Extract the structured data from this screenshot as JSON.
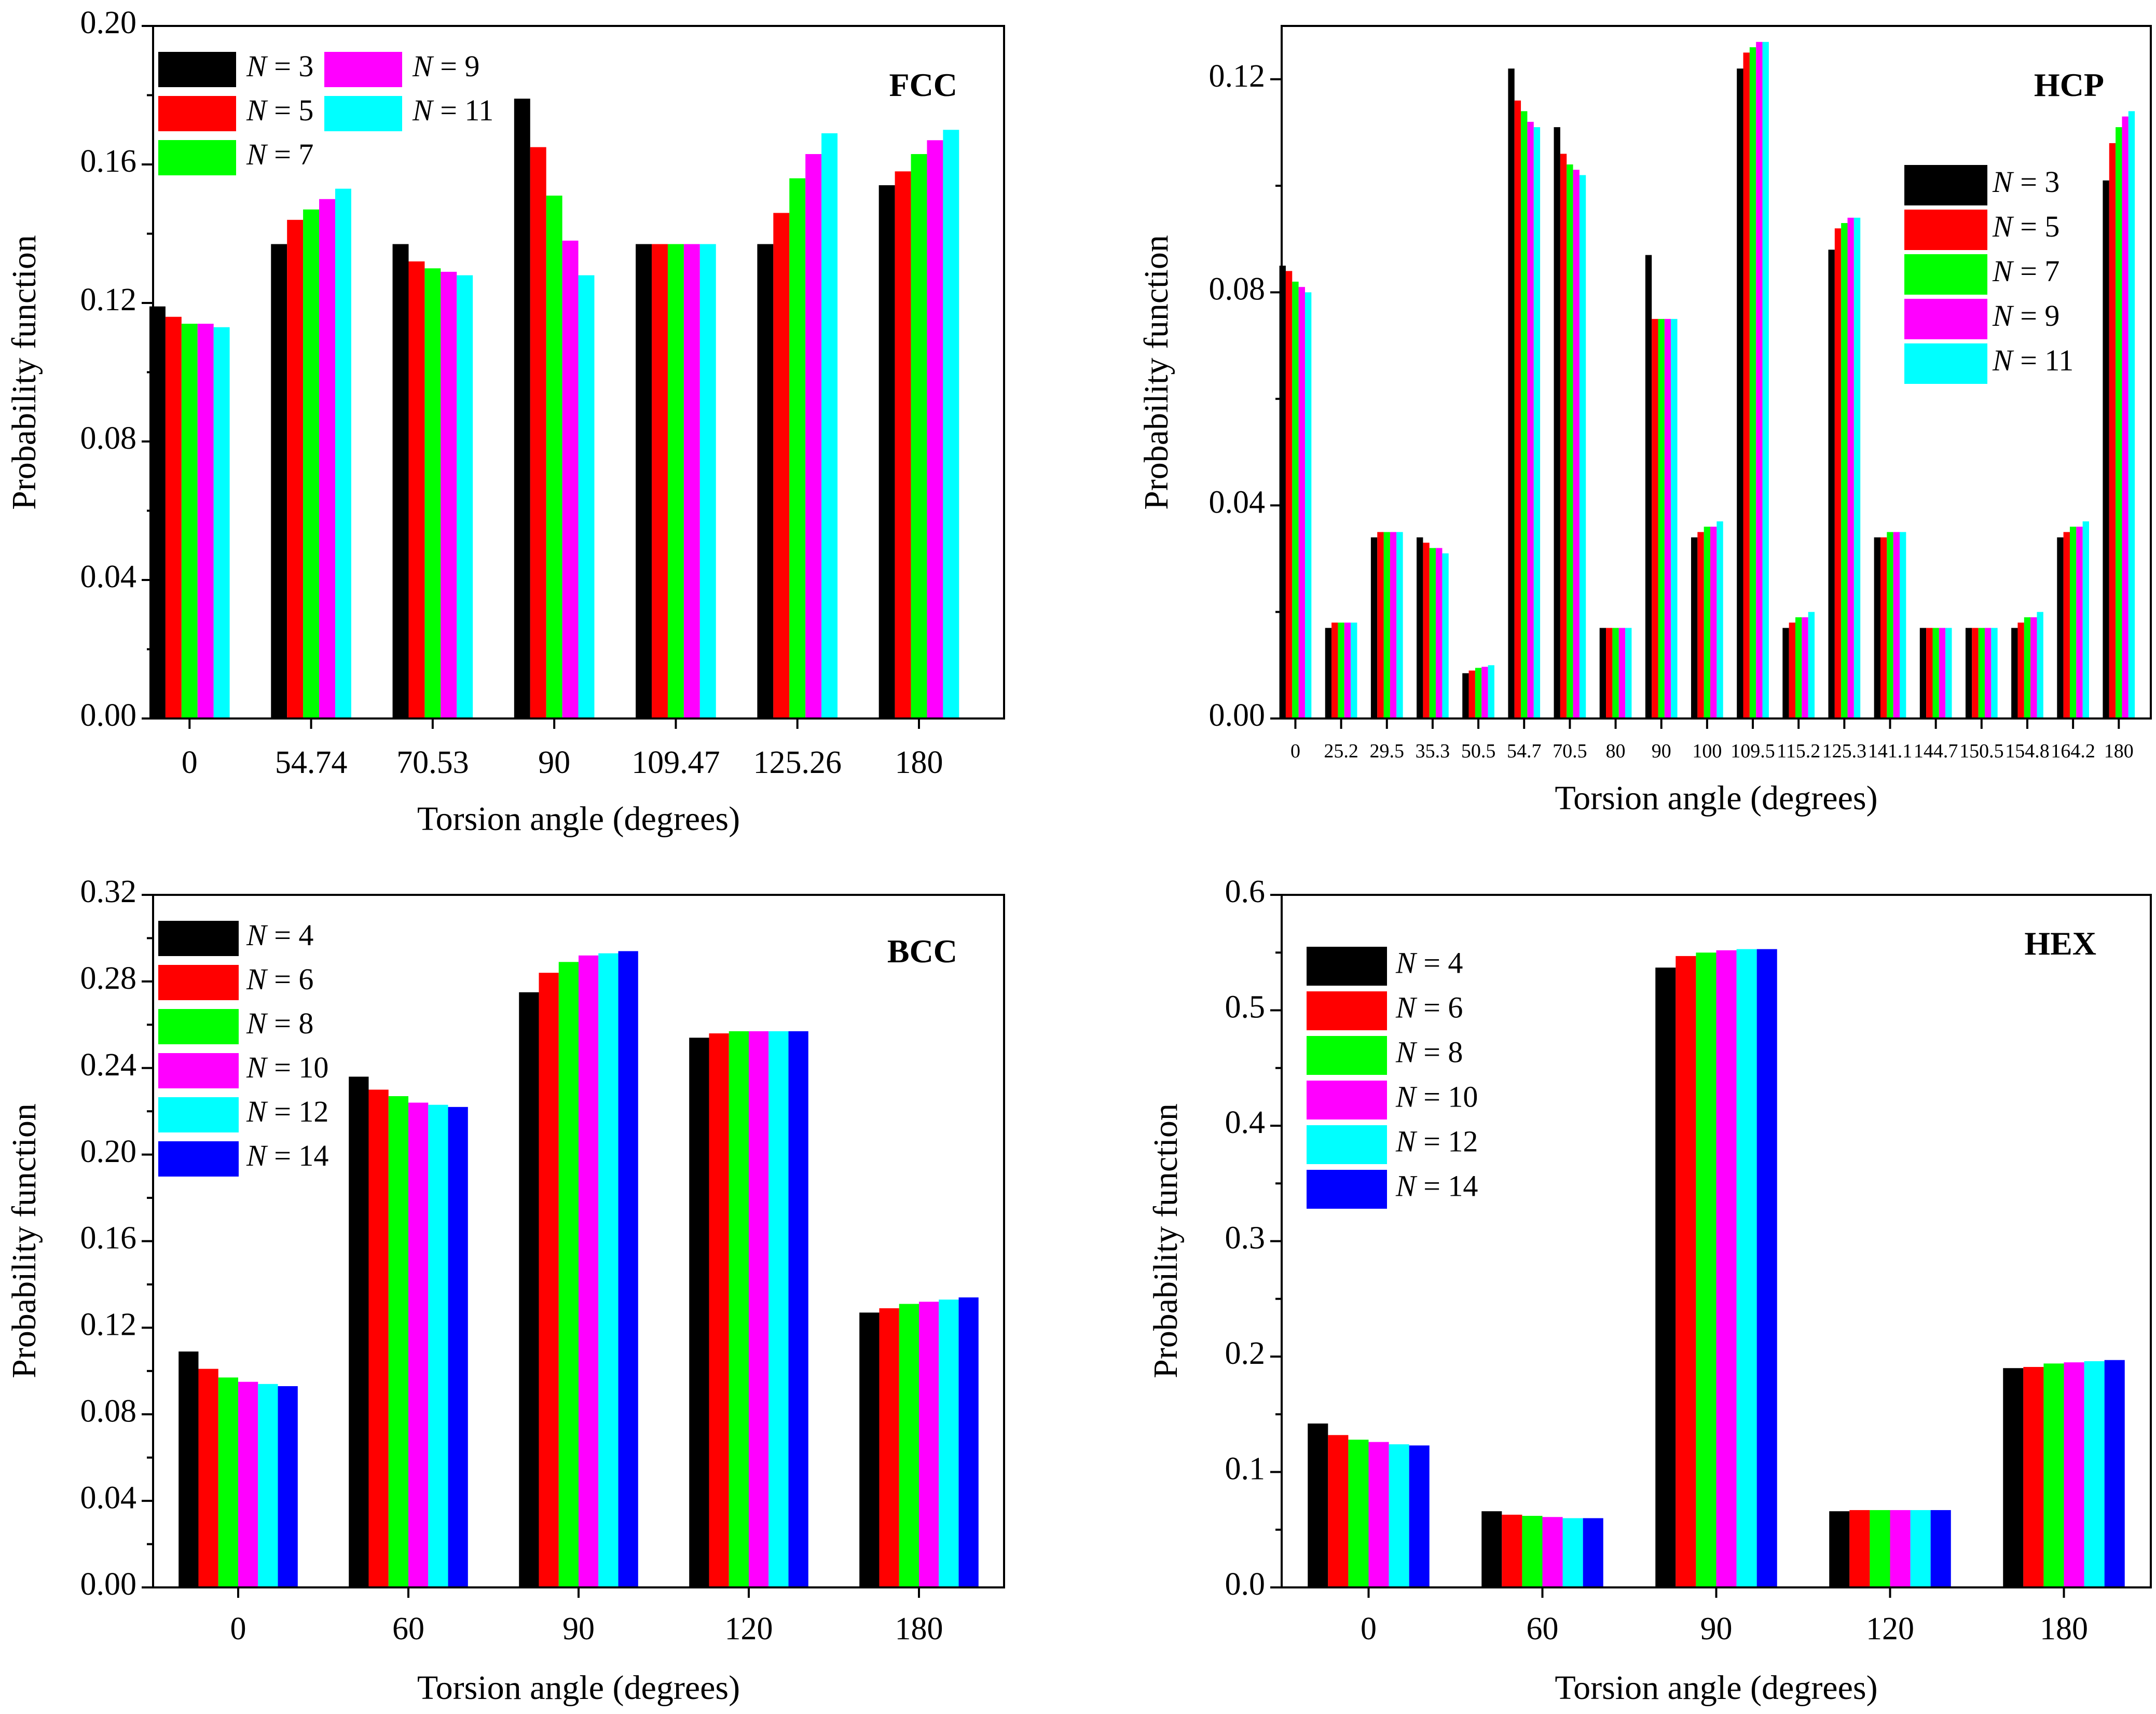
{
  "chart_data": [
    {
      "type": "bar",
      "title": "FCC",
      "xlabel": "Torsion angle (degrees)",
      "ylabel": "Probability function",
      "ylim": [
        0,
        0.2
      ],
      "yticks": [
        "0.00",
        "0.04",
        "0.08",
        "0.12",
        "0.16",
        "0.20"
      ],
      "categories": [
        "0",
        "54.74",
        "70.53",
        "90",
        "109.47",
        "125.26",
        "180"
      ],
      "legend_prefix": "N",
      "legend_placement": "top-left",
      "series": [
        {
          "name": "3",
          "color": "#000000",
          "values": [
            0.119,
            0.137,
            0.137,
            0.179,
            0.137,
            0.137,
            0.154
          ]
        },
        {
          "name": "5",
          "color": "#ff0000",
          "values": [
            0.116,
            0.144,
            0.132,
            0.165,
            0.137,
            0.146,
            0.158
          ]
        },
        {
          "name": "7",
          "color": "#00ff00",
          "values": [
            0.114,
            0.147,
            0.13,
            0.151,
            0.137,
            0.156,
            0.163
          ]
        },
        {
          "name": "9",
          "color": "#ff00ff",
          "values": [
            0.114,
            0.15,
            0.129,
            0.138,
            0.137,
            0.163,
            0.167
          ]
        },
        {
          "name": "11",
          "color": "#00ffff",
          "values": [
            0.113,
            0.153,
            0.128,
            0.128,
            0.137,
            0.169,
            0.17
          ]
        }
      ]
    },
    {
      "type": "bar",
      "title": "HCP",
      "xlabel": "Torsion angle (degrees)",
      "ylabel": "Probability function",
      "ylim": [
        0,
        0.13
      ],
      "yticks": [
        "0.00",
        "0.04",
        "0.08",
        "0.12"
      ],
      "categories": [
        "0",
        "25.2",
        "29.5",
        "35.3",
        "50.5",
        "54.7",
        "70.5",
        "80",
        "90",
        "100",
        "109.5",
        "115.2",
        "125.3",
        "141.1",
        "144.7",
        "150.5",
        "154.8",
        "164.2",
        "180"
      ],
      "legend_prefix": "N",
      "legend_placement": "top-right",
      "series": [
        {
          "name": "3",
          "color": "#000000",
          "values": [
            0.085,
            0.017,
            0.034,
            0.034,
            0.0085,
            0.122,
            0.111,
            0.017,
            0.087,
            0.034,
            0.122,
            0.017,
            0.088,
            0.034,
            0.017,
            0.017,
            0.017,
            0.034,
            0.101
          ]
        },
        {
          "name": "5",
          "color": "#ff0000",
          "values": [
            0.084,
            0.018,
            0.035,
            0.033,
            0.009,
            0.116,
            0.106,
            0.017,
            0.075,
            0.035,
            0.125,
            0.018,
            0.092,
            0.034,
            0.017,
            0.017,
            0.018,
            0.035,
            0.108
          ]
        },
        {
          "name": "7",
          "color": "#00ff00",
          "values": [
            0.082,
            0.018,
            0.035,
            0.032,
            0.0095,
            0.114,
            0.104,
            0.017,
            0.075,
            0.036,
            0.126,
            0.019,
            0.093,
            0.035,
            0.017,
            0.017,
            0.019,
            0.036,
            0.111
          ]
        },
        {
          "name": "9",
          "color": "#ff00ff",
          "values": [
            0.081,
            0.018,
            0.035,
            0.032,
            0.0097,
            0.112,
            0.103,
            0.017,
            0.075,
            0.036,
            0.127,
            0.019,
            0.094,
            0.035,
            0.017,
            0.017,
            0.019,
            0.036,
            0.113
          ]
        },
        {
          "name": "11",
          "color": "#00ffff",
          "values": [
            0.08,
            0.018,
            0.035,
            0.031,
            0.01,
            0.111,
            0.102,
            0.017,
            0.075,
            0.037,
            0.127,
            0.02,
            0.094,
            0.035,
            0.017,
            0.017,
            0.02,
            0.037,
            0.114
          ]
        }
      ]
    },
    {
      "type": "bar",
      "title": "BCC",
      "xlabel": "Torsion angle (degrees)",
      "ylabel": "Probability function",
      "ylim": [
        0,
        0.32
      ],
      "yticks": [
        "0.00",
        "0.04",
        "0.08",
        "0.12",
        "0.16",
        "0.20",
        "0.24",
        "0.28",
        "0.32"
      ],
      "categories": [
        "0",
        "60",
        "90",
        "120",
        "180"
      ],
      "legend_prefix": "N",
      "legend_placement": "top-left",
      "series": [
        {
          "name": "4",
          "color": "#000000",
          "values": [
            0.109,
            0.236,
            0.275,
            0.254,
            0.127
          ]
        },
        {
          "name": "6",
          "color": "#ff0000",
          "values": [
            0.101,
            0.23,
            0.284,
            0.256,
            0.129
          ]
        },
        {
          "name": "8",
          "color": "#00ff00",
          "values": [
            0.097,
            0.227,
            0.289,
            0.257,
            0.131
          ]
        },
        {
          "name": "10",
          "color": "#ff00ff",
          "values": [
            0.095,
            0.224,
            0.292,
            0.257,
            0.132
          ]
        },
        {
          "name": "12",
          "color": "#00ffff",
          "values": [
            0.094,
            0.223,
            0.293,
            0.257,
            0.133
          ]
        },
        {
          "name": "14",
          "color": "#0000ff",
          "values": [
            0.093,
            0.222,
            0.294,
            0.257,
            0.134
          ]
        }
      ]
    },
    {
      "type": "bar",
      "title": "HEX",
      "xlabel": "Torsion angle (degrees)",
      "ylabel": "Probability function",
      "ylim": [
        0,
        0.6
      ],
      "yticks": [
        "0.0",
        "0.1",
        "0.2",
        "0.3",
        "0.4",
        "0.5",
        "0.6"
      ],
      "categories": [
        "0",
        "60",
        "90",
        "120",
        "180"
      ],
      "legend_prefix": "N",
      "legend_placement": "top-left",
      "series": [
        {
          "name": "4",
          "color": "#000000",
          "values": [
            0.142,
            0.066,
            0.537,
            0.066,
            0.19
          ]
        },
        {
          "name": "6",
          "color": "#ff0000",
          "values": [
            0.132,
            0.063,
            0.547,
            0.067,
            0.191
          ]
        },
        {
          "name": "8",
          "color": "#00ff00",
          "values": [
            0.128,
            0.062,
            0.55,
            0.067,
            0.194
          ]
        },
        {
          "name": "10",
          "color": "#ff00ff",
          "values": [
            0.126,
            0.061,
            0.552,
            0.067,
            0.195
          ]
        },
        {
          "name": "12",
          "color": "#00ffff",
          "values": [
            0.124,
            0.06,
            0.553,
            0.067,
            0.196
          ]
        },
        {
          "name": "14",
          "color": "#0000ff",
          "values": [
            0.123,
            0.06,
            0.553,
            0.067,
            0.197
          ]
        }
      ]
    }
  ]
}
